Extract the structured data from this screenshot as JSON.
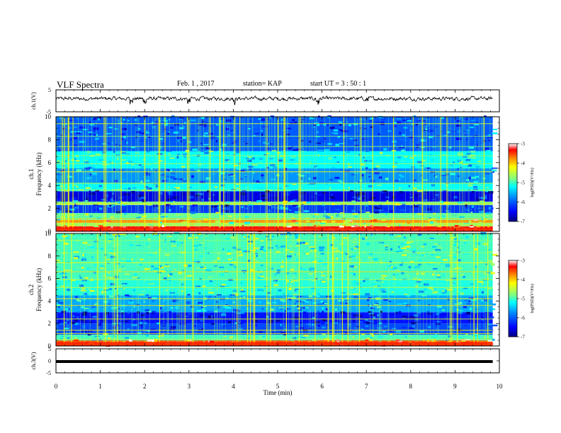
{
  "header": {
    "title": "VLF Spectra",
    "date": "Feb. 1 , 2017",
    "station": "station= KAP",
    "start": "start  UT =  3 : 50 : 1"
  },
  "chart_data": [
    {
      "type": "line",
      "ylabel": "ch.1(V)",
      "ylim": [
        -5,
        5
      ],
      "yticks": [
        "5",
        "-5"
      ],
      "x_range_min": [
        0,
        9.85
      ],
      "description_values": "noisy waveform fluctuating around +1 V, dips near -1 V at ~2.0, 3.0, 4.0, 5.9, 7.0 min",
      "color": "#000000"
    },
    {
      "type": "heatmap",
      "ylabel": "ch.1\nFrequency (kHz)",
      "ylim": [
        0,
        10
      ],
      "yticks": [
        "0",
        "2",
        "4",
        "6",
        "8",
        "10"
      ],
      "x_range_min": [
        0,
        9.85
      ],
      "colorbar": {
        "label": "log(PSD)(V²/Hz)",
        "range": [
          -7,
          -3
        ],
        "ticks": [
          "-3",
          "-4",
          "-5",
          "-6",
          "-7"
        ]
      },
      "bands_khz": [
        {
          "range": [
            0.0,
            0.45
          ],
          "level": -3.3
        },
        {
          "range": [
            0.45,
            0.75
          ],
          "level": -4.6
        },
        {
          "range": [
            0.75,
            1.0
          ],
          "level": -3.8
        },
        {
          "range": [
            1.0,
            1.6
          ],
          "level": -4.9
        },
        {
          "range": [
            1.6,
            2.3
          ],
          "level": -6.2
        },
        {
          "range": [
            2.3,
            2.6
          ],
          "level": -4.8
        },
        {
          "range": [
            2.6,
            3.5
          ],
          "level": -6.6
        },
        {
          "range": [
            3.5,
            4.2
          ],
          "level": -5.2
        },
        {
          "range": [
            4.2,
            5.5
          ],
          "level": -5.7
        },
        {
          "range": [
            5.5,
            7.0
          ],
          "level": -5.2
        },
        {
          "range": [
            7.0,
            10.0
          ],
          "level": -6.0
        }
      ]
    },
    {
      "type": "heatmap",
      "ylabel": "ch.2\nFrequency (kHz)",
      "ylim": [
        0,
        10
      ],
      "yticks": [
        "0",
        "2",
        "4",
        "6",
        "8",
        "10"
      ],
      "x_range_min": [
        0,
        9.85
      ],
      "colorbar": {
        "label": "log(PSD)(V²/Hz)",
        "range": [
          -7,
          -3
        ],
        "ticks": [
          "-3",
          "-4",
          "-5",
          "-6",
          "-7"
        ]
      },
      "bands_khz": [
        {
          "range": [
            0.0,
            0.5
          ],
          "level": -3.6
        },
        {
          "range": [
            0.5,
            1.0
          ],
          "level": -5.0
        },
        {
          "range": [
            1.0,
            2.0
          ],
          "level": -6.1
        },
        {
          "range": [
            2.0,
            3.0
          ],
          "level": -6.4
        },
        {
          "range": [
            3.0,
            4.5
          ],
          "level": -5.6
        },
        {
          "range": [
            4.5,
            6.0
          ],
          "level": -5.1
        },
        {
          "range": [
            6.0,
            10.0
          ],
          "level": -5.0
        }
      ]
    },
    {
      "type": "line",
      "ylabel": "ch.3(V)",
      "ylim": [
        -5,
        5
      ],
      "yticks": [
        "5",
        "0",
        "-5"
      ],
      "x_range_min": [
        0,
        9.85
      ],
      "values_constant": -0.3,
      "color": "#000000"
    }
  ],
  "xaxis": {
    "label": "Time (min)",
    "ticks": [
      "0",
      "1",
      "2",
      "3",
      "4",
      "5",
      "6",
      "7",
      "8",
      "9",
      "10"
    ]
  },
  "colors": {
    "colormap": [
      "#00007f",
      "#0000ff",
      "#0080ff",
      "#00ffff",
      "#80ff80",
      "#ffff00",
      "#ff8000",
      "#ff0000",
      "#ffffff"
    ]
  }
}
